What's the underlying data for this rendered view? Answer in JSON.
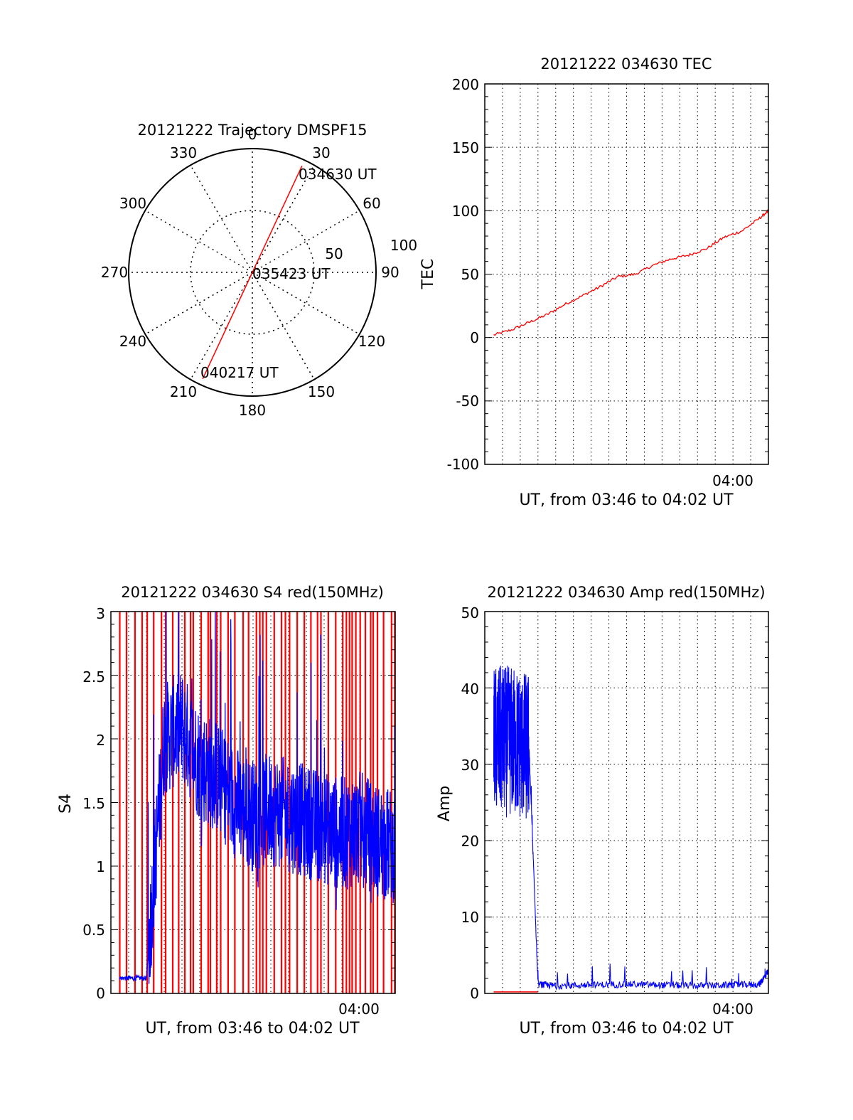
{
  "colors": {
    "primary": "#ff0000",
    "secondary": "#0000ff",
    "axis": "#000000",
    "grid": "#000000"
  },
  "panels": {
    "trajectory": {
      "title": "20121222 Trajectory DMSPF15",
      "azimuth_labels": [
        "0",
        "30",
        "60",
        "90",
        "120",
        "150",
        "180",
        "210",
        "240",
        "270",
        "300",
        "330"
      ],
      "elevation_labels": [
        "50",
        "100"
      ],
      "labels": {
        "start": "034630 UT",
        "middle": "035423 UT",
        "end": "040217 UT"
      }
    },
    "tec": {
      "title": "20121222 034630 TEC",
      "ylabel": "TEC",
      "xlabel": "UT, from 03:46 to 04:02 UT",
      "xtick": "04:00",
      "yticks": [
        "-100",
        "-50",
        "0",
        "50",
        "100",
        "150",
        "200"
      ]
    },
    "s4": {
      "title": "20121222 034630 S4 red(150MHz)",
      "ylabel": "S4",
      "xlabel": "UT, from 03:46 to 04:02 UT",
      "xtick": "04:00",
      "yticks": [
        "0",
        "0.5",
        "1",
        "1.5",
        "2",
        "2.5",
        "3"
      ]
    },
    "amp": {
      "title": "20121222 034630 Amp red(150MHz)",
      "ylabel": "Amp",
      "xlabel": "UT, from 03:46 to 04:02 UT",
      "xtick": "04:00",
      "yticks": [
        "0",
        "10",
        "20",
        "30",
        "40",
        "50"
      ]
    }
  },
  "chart_data": [
    {
      "type": "polar",
      "title": "20121222 Trajectory DMSPF15",
      "azimuth_ticks": [
        0,
        30,
        60,
        90,
        120,
        150,
        180,
        210,
        240,
        270,
        300,
        330
      ],
      "elevation_rings": [
        50,
        100
      ],
      "series": [
        {
          "color": "#ff0000",
          "points": [
            {
              "label": "034630 UT",
              "azimuth": 25,
              "radius": 95
            },
            {
              "label": "035423 UT",
              "azimuth": 0,
              "radius": 0
            },
            {
              "label": "040217 UT",
              "azimuth": 205,
              "radius": 95
            }
          ]
        }
      ]
    },
    {
      "type": "line",
      "title": "20121222 034630 TEC",
      "xlabel": "UT, from 03:46 to 04:02 UT",
      "ylabel": "TEC",
      "xlim": [
        "03:46",
        "04:02"
      ],
      "ylim": [
        -100,
        200
      ],
      "grid": true,
      "series": [
        {
          "color": "#ff0000",
          "x": [
            "03:46:30",
            "03:47:30",
            "03:48:30",
            "03:49:30",
            "03:50:30",
            "03:51:30",
            "03:52:30",
            "03:53:30",
            "03:54:30",
            "03:55:30",
            "03:56:30",
            "03:57:30",
            "03:58:30",
            "03:59:30",
            "04:00:30",
            "04:01:30",
            "04:02:00"
          ],
          "y": [
            2,
            6,
            12,
            18,
            26,
            33,
            40,
            48,
            50,
            57,
            62,
            65,
            70,
            79,
            84,
            94,
            100
          ]
        }
      ]
    },
    {
      "type": "line",
      "title": "20121222 034630 S4 red(150MHz)",
      "xlabel": "UT, from 03:46 to 04:02 UT",
      "ylabel": "S4",
      "xlim": [
        "03:46",
        "04:02"
      ],
      "ylim": [
        0,
        3
      ],
      "grid": true,
      "series": [
        {
          "color": "#0000ff",
          "x": [
            "03:46:30",
            "03:48:00",
            "03:49:00",
            "03:50:00",
            "03:51:00",
            "03:52:00",
            "03:53:00",
            "03:54:00",
            "03:55:00",
            "03:56:00",
            "03:57:00",
            "03:58:00",
            "03:59:00",
            "04:00:00",
            "04:01:00",
            "04:02:00"
          ],
          "y": [
            0.12,
            0.12,
            2.0,
            2.1,
            1.8,
            1.7,
            1.5,
            1.4,
            1.45,
            1.4,
            1.35,
            1.3,
            1.25,
            1.3,
            1.2,
            1.15
          ]
        },
        {
          "color": "#ff0000",
          "x": [
            "03:46:30",
            "04:02:00"
          ],
          "y": [
            0,
            3
          ]
        }
      ]
    },
    {
      "type": "line",
      "title": "20121222 034630 Amp red(150MHz)",
      "xlabel": "UT, from 03:46 to 04:02 UT",
      "ylabel": "Amp",
      "xlim": [
        "03:46",
        "04:02"
      ],
      "ylim": [
        0,
        50
      ],
      "grid": true,
      "series": [
        {
          "color": "#0000ff",
          "x": [
            "03:46:30",
            "03:47:30",
            "03:48:30",
            "03:49:00",
            "03:50:00",
            "03:52:00",
            "03:54:00",
            "03:56:00",
            "03:58:00",
            "04:00:00",
            "04:01:30",
            "04:02:00"
          ],
          "y": [
            33,
            33,
            32,
            1.2,
            1.0,
            1.1,
            1.2,
            1.1,
            1.0,
            1.1,
            1.2,
            3
          ]
        },
        {
          "color": "#ff0000",
          "x": [
            "03:46:30",
            "03:49:00"
          ],
          "y": [
            0.2,
            0.2
          ]
        }
      ]
    }
  ]
}
